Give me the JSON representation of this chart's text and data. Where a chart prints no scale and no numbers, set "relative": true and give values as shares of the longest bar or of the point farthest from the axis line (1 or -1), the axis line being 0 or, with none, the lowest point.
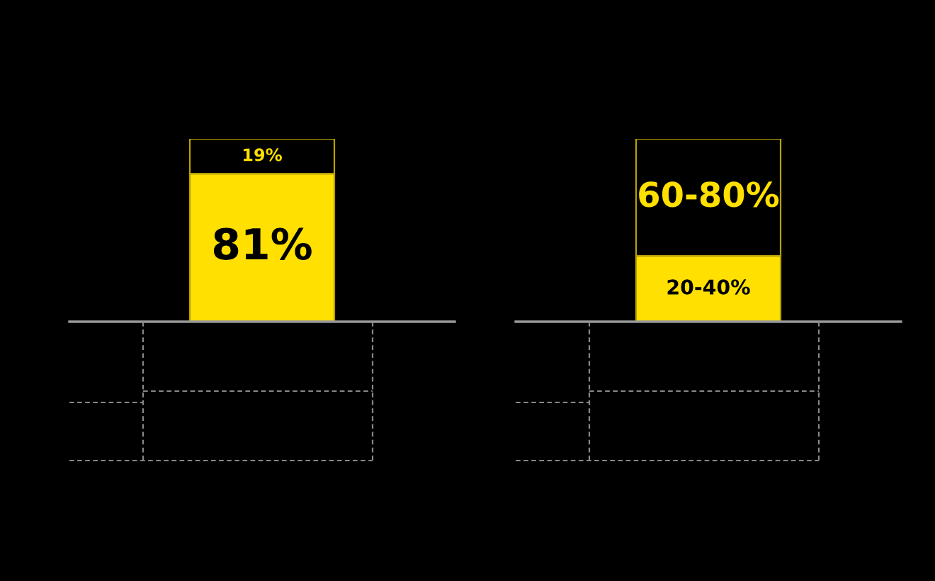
{
  "chart_data": [
    {
      "type": "bar",
      "stacked": true,
      "categories": [
        null
      ],
      "series": [
        {
          "color": "#ffe000",
          "values": [
            81
          ],
          "value_labels": [
            "81%"
          ]
        },
        {
          "color": "#000000",
          "values": [
            19
          ],
          "value_labels": [
            "19%"
          ]
        }
      ]
    },
    {
      "type": "bar",
      "stacked": true,
      "relative": true,
      "categories": [
        null
      ],
      "annotations": [
        "20-40%",
        "60-80%"
      ],
      "series": [
        {
          "color": "#ffe000",
          "values": [
            0.36
          ]
        },
        {
          "color": "#000000",
          "values": [
            0.64
          ]
        }
      ]
    }
  ]
}
